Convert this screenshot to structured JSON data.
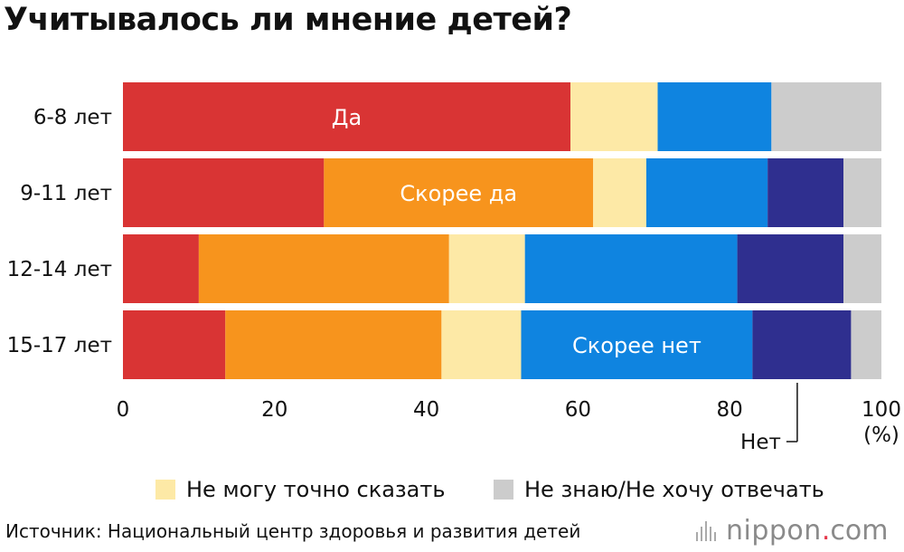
{
  "chart_data": {
    "type": "bar",
    "orientation": "horizontal",
    "stacked": true,
    "title": "Учитывалось ли мнение детей?",
    "categories": [
      "6-8 лет",
      "9-11 лет",
      "12-14 лет",
      "15-17 лет"
    ],
    "series": [
      {
        "name": "Да",
        "color": "#d93434",
        "values": [
          59.0,
          26.5,
          10.0,
          13.5
        ]
      },
      {
        "name": "Скорее да",
        "color": "#f7941d",
        "values": [
          0.0,
          35.5,
          33.0,
          28.5
        ]
      },
      {
        "name": "Не могу точно сказать",
        "color": "#fde9a6",
        "values": [
          11.5,
          7.0,
          10.0,
          10.5
        ]
      },
      {
        "name": "Скорее нет",
        "color": "#0f84e0",
        "values": [
          15.0,
          16.0,
          28.0,
          30.5
        ]
      },
      {
        "name": "Нет",
        "color": "#2f2f8f",
        "values": [
          0.0,
          10.0,
          14.0,
          13.0
        ]
      },
      {
        "name": "Не знаю/Не хочу отвечать",
        "color": "#cccccc",
        "values": [
          14.5,
          5.0,
          5.0,
          4.0
        ]
      }
    ],
    "xlim": [
      0,
      100
    ],
    "xticks": [
      0,
      20,
      40,
      60,
      80,
      100
    ],
    "xunit": "(%)",
    "grid": false,
    "legend": "bottom"
  },
  "bar_labels": [
    {
      "text": "Да",
      "series": 0,
      "row": 0
    },
    {
      "text": "Скорее да",
      "series": 1,
      "row": 1
    },
    {
      "text": "Скорее нет",
      "series": 3,
      "row": 3
    }
  ],
  "callout": {
    "text": "Нет",
    "series": 4,
    "row": 3
  },
  "legend_items": [
    {
      "label": "Не могу точно сказать",
      "color": "#fde9a6"
    },
    {
      "label": "Не знаю/Не хочу отвечать",
      "color": "#cccccc"
    }
  ],
  "source": "Источник: Национальный центр здоровья и развития детей",
  "brand": {
    "name": "nippon",
    "dot": ".",
    "tld": "com"
  }
}
